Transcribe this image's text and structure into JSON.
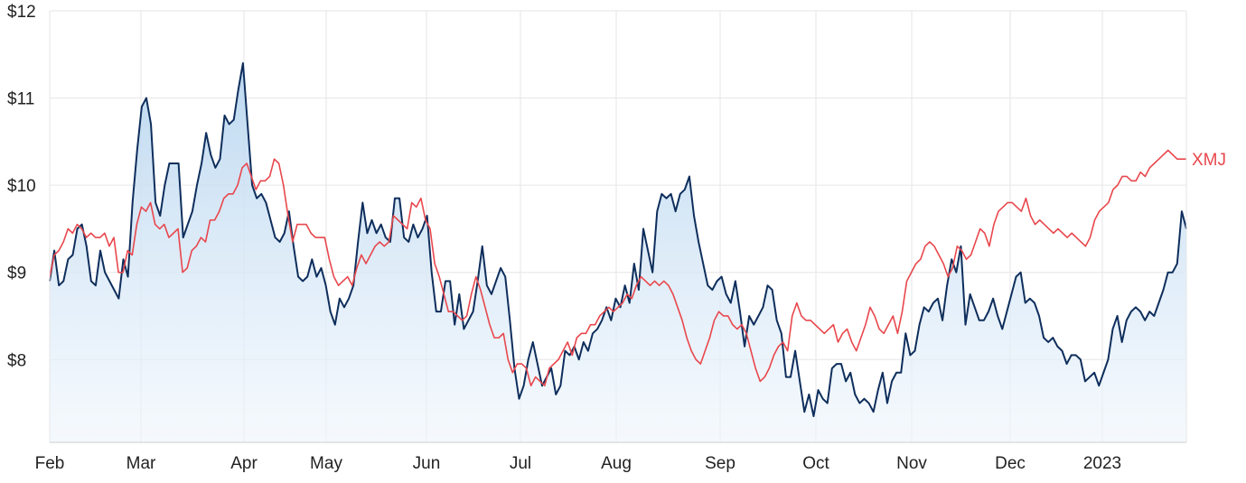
{
  "chart_data": {
    "type": "line",
    "title": "",
    "xlabel": "",
    "ylabel": "",
    "grid": true,
    "ylim": [
      7.05,
      12
    ],
    "yticks": [
      8,
      9,
      10,
      11,
      12
    ],
    "ytick_labels": [
      "$8",
      "$9",
      "$10",
      "$11",
      "$12"
    ],
    "xtick_labels": [
      "Feb",
      "Mar",
      "Apr",
      "May",
      "Jun",
      "Jul",
      "Aug",
      "Sep",
      "Oct",
      "Nov",
      "Dec",
      "2023"
    ],
    "x_range": [
      "Feb",
      "end of Jan 2023"
    ],
    "colors": {
      "primary": "#0e2e5c",
      "primary_fill": "#c6def2",
      "secondary": "#e8474c",
      "grid": "#e6e6e6"
    },
    "series": [
      {
        "name": "",
        "style": "area",
        "values": [
          8.9,
          9.25,
          8.85,
          8.9,
          9.15,
          9.2,
          9.5,
          9.55,
          9.3,
          8.9,
          8.85,
          9.25,
          9.0,
          8.9,
          8.8,
          8.7,
          9.15,
          8.95,
          9.8,
          10.4,
          10.9,
          11.0,
          10.7,
          9.8,
          9.65,
          10.0,
          10.25,
          10.25,
          10.25,
          9.4,
          9.55,
          9.7,
          10.0,
          10.25,
          10.6,
          10.35,
          10.2,
          10.3,
          10.8,
          10.7,
          10.75,
          11.1,
          11.4,
          10.7,
          10.0,
          9.85,
          9.9,
          9.8,
          9.6,
          9.4,
          9.35,
          9.45,
          9.7,
          9.3,
          8.95,
          8.9,
          8.95,
          9.15,
          8.95,
          9.05,
          8.85,
          8.55,
          8.4,
          8.7,
          8.6,
          8.7,
          8.85,
          9.35,
          9.8,
          9.45,
          9.6,
          9.45,
          9.55,
          9.4,
          9.35,
          9.85,
          9.85,
          9.4,
          9.35,
          9.55,
          9.4,
          9.5,
          9.65,
          9.0,
          8.55,
          8.55,
          8.9,
          8.9,
          8.4,
          8.75,
          8.35,
          8.45,
          8.55,
          8.9,
          9.3,
          8.85,
          8.75,
          8.9,
          9.05,
          8.95,
          8.45,
          7.9,
          7.55,
          7.7,
          8.0,
          8.2,
          7.95,
          7.7,
          7.8,
          7.9,
          7.6,
          7.7,
          8.1,
          8.05,
          8.15,
          8.0,
          8.2,
          8.1,
          8.3,
          8.35,
          8.45,
          8.6,
          8.45,
          8.7,
          8.6,
          8.85,
          8.65,
          9.1,
          8.8,
          9.5,
          9.25,
          9.0,
          9.7,
          9.9,
          9.85,
          9.9,
          9.7,
          9.9,
          9.95,
          10.1,
          9.65,
          9.35,
          9.1,
          8.85,
          8.8,
          8.9,
          8.95,
          8.75,
          8.65,
          8.9,
          8.55,
          8.15,
          8.5,
          8.4,
          8.5,
          8.6,
          8.85,
          8.8,
          8.45,
          8.3,
          7.8,
          7.8,
          8.1,
          7.75,
          7.4,
          7.6,
          7.35,
          7.65,
          7.55,
          7.5,
          7.9,
          7.95,
          7.95,
          7.75,
          7.85,
          7.6,
          7.5,
          7.55,
          7.5,
          7.4,
          7.65,
          7.85,
          7.5,
          7.75,
          7.85,
          7.85,
          8.3,
          8.05,
          8.1,
          8.4,
          8.6,
          8.55,
          8.65,
          8.7,
          8.45,
          8.85,
          9.15,
          9.0,
          9.3,
          8.4,
          8.75,
          8.6,
          8.45,
          8.45,
          8.55,
          8.7,
          8.5,
          8.35,
          8.55,
          8.75,
          8.95,
          9.0,
          8.65,
          8.7,
          8.65,
          8.5,
          8.25,
          8.2,
          8.25,
          8.15,
          8.1,
          7.95,
          8.05,
          8.05,
          8.0,
          7.75,
          7.8,
          7.85,
          7.7,
          7.85,
          8.0,
          8.35,
          8.5,
          8.2,
          8.45,
          8.55,
          8.6,
          8.55,
          8.45,
          8.55,
          8.5,
          8.65,
          8.8,
          9.0,
          9.0,
          9.1,
          9.7,
          9.5
        ]
      },
      {
        "name": "XMJ",
        "style": "line",
        "values": [
          8.95,
          9.2,
          9.25,
          9.35,
          9.5,
          9.45,
          9.55,
          9.5,
          9.4,
          9.45,
          9.4,
          9.4,
          9.45,
          9.3,
          9.4,
          9.0,
          9.0,
          9.25,
          9.2,
          9.55,
          9.75,
          9.7,
          9.8,
          9.55,
          9.5,
          9.55,
          9.4,
          9.45,
          9.5,
          9.0,
          9.05,
          9.25,
          9.3,
          9.4,
          9.35,
          9.6,
          9.6,
          9.7,
          9.85,
          9.9,
          9.9,
          10.0,
          10.2,
          10.25,
          10.1,
          9.95,
          10.05,
          10.05,
          10.1,
          10.3,
          10.25,
          10.0,
          9.65,
          9.35,
          9.55,
          9.55,
          9.55,
          9.45,
          9.4,
          9.4,
          9.4,
          9.15,
          8.95,
          8.85,
          8.9,
          8.95,
          8.85,
          9.05,
          9.2,
          9.1,
          9.2,
          9.3,
          9.35,
          9.3,
          9.35,
          9.65,
          9.6,
          9.55,
          9.5,
          9.8,
          9.75,
          9.85,
          9.6,
          9.5,
          9.1,
          8.95,
          8.75,
          8.55,
          8.55,
          8.5,
          8.45,
          8.5,
          8.75,
          8.95,
          8.8,
          8.6,
          8.4,
          8.25,
          8.25,
          8.3,
          8.0,
          7.85,
          7.95,
          7.95,
          7.9,
          7.7,
          7.8,
          7.75,
          7.7,
          7.9,
          7.95,
          8.0,
          8.1,
          8.2,
          8.05,
          8.25,
          8.3,
          8.3,
          8.4,
          8.4,
          8.5,
          8.55,
          8.6,
          8.55,
          8.6,
          8.65,
          8.75,
          8.7,
          8.85,
          8.95,
          8.9,
          8.85,
          8.9,
          8.85,
          8.9,
          8.85,
          8.75,
          8.6,
          8.45,
          8.25,
          8.1,
          8.0,
          7.95,
          8.1,
          8.25,
          8.45,
          8.55,
          8.5,
          8.5,
          8.4,
          8.35,
          8.4,
          8.3,
          8.1,
          7.9,
          7.75,
          7.8,
          7.9,
          8.05,
          8.15,
          8.2,
          8.1,
          8.5,
          8.65,
          8.5,
          8.45,
          8.45,
          8.4,
          8.35,
          8.3,
          8.35,
          8.4,
          8.2,
          8.3,
          8.35,
          8.2,
          8.1,
          8.25,
          8.4,
          8.6,
          8.5,
          8.35,
          8.3,
          8.4,
          8.5,
          8.3,
          8.55,
          8.9,
          9.0,
          9.1,
          9.15,
          9.3,
          9.35,
          9.3,
          9.2,
          9.1,
          8.95,
          9.05,
          9.3,
          9.25,
          9.15,
          9.2,
          9.35,
          9.5,
          9.45,
          9.3,
          9.55,
          9.7,
          9.75,
          9.8,
          9.8,
          9.75,
          9.7,
          9.85,
          9.65,
          9.55,
          9.6,
          9.55,
          9.5,
          9.45,
          9.5,
          9.45,
          9.4,
          9.45,
          9.4,
          9.35,
          9.3,
          9.4,
          9.6,
          9.7,
          9.75,
          9.8,
          9.95,
          10.0,
          10.1,
          10.1,
          10.05,
          10.05,
          10.15,
          10.1,
          10.2,
          10.25,
          10.3,
          10.35,
          10.4,
          10.35,
          10.3,
          10.3,
          10.3
        ]
      }
    ]
  }
}
